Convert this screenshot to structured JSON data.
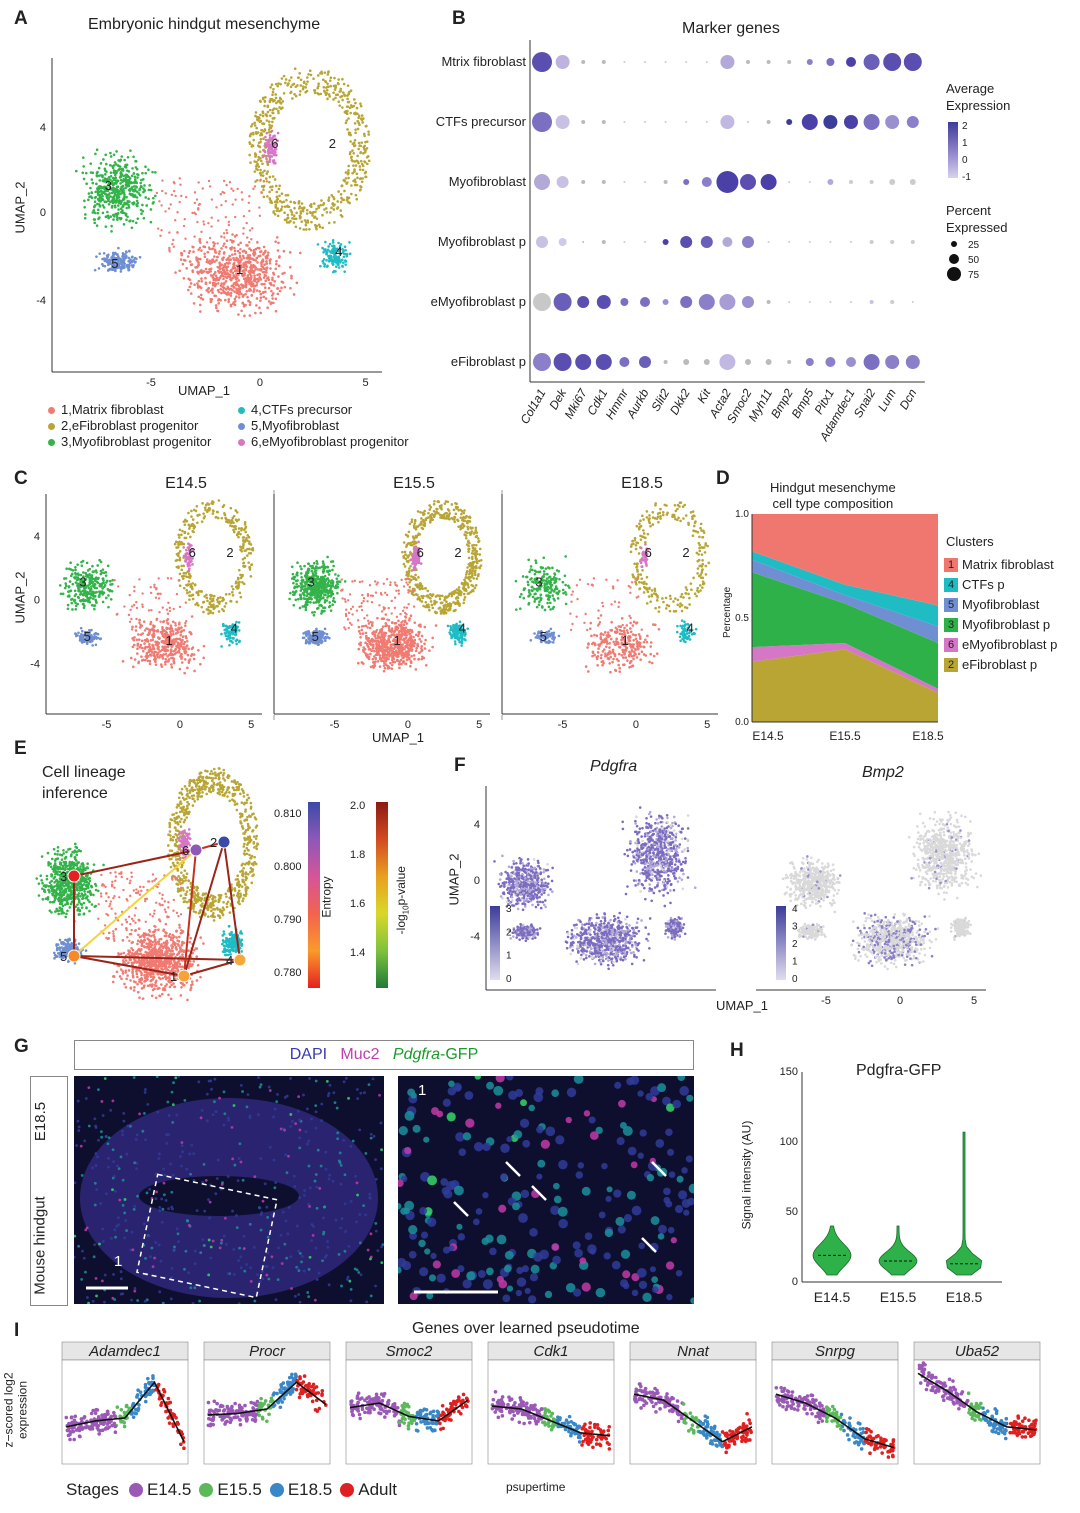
{
  "panelA": {
    "letter": "A",
    "title": "Embryonic hindgut mesenchyme",
    "xlabel": "UMAP_1",
    "ylabel": "UMAP_2",
    "xticks": [
      "-5",
      "0",
      "5"
    ],
    "yticks": [
      "4",
      "0",
      "-4"
    ],
    "cluster_numbers": [
      "1",
      "2",
      "3",
      "4",
      "5",
      "6"
    ],
    "legend": [
      {
        "label": "1,Matrix fibroblast",
        "color": "#ef7b72"
      },
      {
        "label": "2,eFibroblast progenitor",
        "color": "#b8a533"
      },
      {
        "label": "3,Myofibroblast progenitor",
        "color": "#33b34a"
      },
      {
        "label": "4,CTFs precursor",
        "color": "#1fbcc4"
      },
      {
        "label": "5,Myofibroblast",
        "color": "#6f8fd2"
      },
      {
        "label": "6,eMyofibroblast progenitor",
        "color": "#d676c6"
      }
    ]
  },
  "panelB": {
    "letter": "B",
    "title": "Marker genes",
    "rows": [
      "Mtrix fibroblast",
      "CTFs precursor",
      "Myofibroblast",
      "Myofibroblast p",
      "eMyofibroblast p",
      "eFibroblast p"
    ],
    "genes": [
      "Col1a1",
      "Dek",
      "Mki67",
      "Cdk1",
      "Hmmr",
      "Aurkb",
      "Slit2",
      "Dkk2",
      "Kit",
      "Acta2",
      "Smoc2",
      "Myh11",
      "Bmp2",
      "Bmp5",
      "Pitx1",
      "Adamdec1",
      "Snai2",
      "Lum",
      "Dcn"
    ],
    "avg_title_1": "Average",
    "avg_title_2": "Expression",
    "avg_ticks": [
      "2",
      "1",
      "0",
      "-1"
    ],
    "pct_title_1": "Percent",
    "pct_title_2": "Expressed",
    "pct_ticks": [
      "25",
      "50",
      "75"
    ]
  },
  "panelC": {
    "letter": "C",
    "stages": [
      "E14.5",
      "E15.5",
      "E18.5"
    ],
    "xlabel": "UMAP_1",
    "ylabel": "UMAP_2",
    "xticks": [
      "-5",
      "0",
      "5"
    ],
    "yticks": [
      "4",
      "0",
      "-4"
    ]
  },
  "panelD": {
    "letter": "D",
    "title_1": "Hindgut mesenchyme",
    "title_2": "cell type composition",
    "ylabel": "Percentage",
    "yticks": [
      "1.0",
      "0.5",
      "0.0"
    ],
    "legend_title": "Clusters",
    "legend": [
      {
        "num": "1",
        "label": "Matrix fibroblast",
        "color": "#f0776f"
      },
      {
        "num": "4",
        "label": "CTFs p",
        "color": "#1fbcc4"
      },
      {
        "num": "5",
        "label": "Myofibroblast",
        "color": "#6f8fd2"
      },
      {
        "num": "3",
        "label": "Myofibroblast p",
        "color": "#2fb14a"
      },
      {
        "num": "6",
        "label": "eMyofibroblast p",
        "color": "#d676c6"
      },
      {
        "num": "2",
        "label": "eFibroblast p",
        "color": "#b8a533"
      }
    ]
  },
  "chart_data": [
    {
      "type": "area",
      "title": "Hindgut mesenchyme cell type composition",
      "xlabel": "",
      "ylabel": "Percentage",
      "ylim": [
        0,
        1
      ],
      "x": [
        "E14.5",
        "E15.5",
        "E18.5"
      ],
      "stacking": "cumulative upper bounds",
      "series": [
        {
          "name": "2 eFibroblast p",
          "upper": [
            0.29,
            0.35,
            0.14
          ]
        },
        {
          "name": "6 eMyofibroblast p",
          "upper": [
            0.36,
            0.38,
            0.16
          ]
        },
        {
          "name": "3 Myofibroblast p",
          "upper": [
            0.72,
            0.57,
            0.38
          ]
        },
        {
          "name": "5 Myofibroblast",
          "upper": [
            0.78,
            0.61,
            0.46
          ]
        },
        {
          "name": "4 CTFs p",
          "upper": [
            0.82,
            0.66,
            0.56
          ]
        },
        {
          "name": "1 Matrix fibroblast",
          "upper": [
            1.0,
            1.0,
            1.0
          ]
        }
      ]
    },
    {
      "type": "violin",
      "title": "Pdgfra-GFP",
      "ylabel": "Signal intensity (AU)",
      "ylim": [
        0,
        150
      ],
      "categories": [
        "E14.5",
        "E15.5",
        "E18.5"
      ],
      "medians": [
        19,
        15,
        13
      ],
      "maxima": [
        40,
        40,
        107
      ]
    }
  ],
  "panelE": {
    "letter": "E",
    "title_1": "Cell lineage",
    "title_2": "inference",
    "nodes": [
      "1",
      "2",
      "3",
      "4",
      "5",
      "6"
    ],
    "entropy_label": "Entropy",
    "entropy_ticks": [
      "0.810",
      "0.800",
      "0.790",
      "0.780"
    ],
    "pval_label": "-log",
    "pval_sub": "10",
    "pval_tail": "p-value",
    "pval_ticks": [
      "2.0",
      "1.8",
      "1.6",
      "1.4"
    ]
  },
  "panelF": {
    "letter": "F",
    "gene1": "Pdgfra",
    "gene2": "Bmp2",
    "xlabel": "UMAP_1",
    "ylabel": "UMAP_2",
    "yticks": [
      "4",
      "0",
      "-4"
    ],
    "xticks": [
      "-5",
      "0",
      "5"
    ],
    "scale1": [
      "3",
      "2",
      "1",
      "0"
    ],
    "scale2": [
      "4",
      "3",
      "2",
      "1",
      "0"
    ]
  },
  "panelG": {
    "letter": "G",
    "dapi": "DAPI",
    "muc2": "Muc2",
    "gfp": "Pdgfra",
    "gfp_suffix": "-GFP",
    "side_top": "E18.5",
    "side_bottom": "Mouse hindgut",
    "inset_num": "1"
  },
  "panelH": {
    "letter": "H",
    "title": "Pdgfra-GFP",
    "ylabel": "Signal intensity (AU)",
    "yticks": [
      "150",
      "100",
      "50",
      "0"
    ],
    "categories": [
      "E14.5",
      "E15.5",
      "E18.5"
    ]
  },
  "panelI": {
    "letter": "I",
    "title": "Genes over learned pseudotime",
    "ylabel_1": "z−scored log2",
    "ylabel_2": "expression",
    "xlabel": "psupertime",
    "genes": [
      "Adamdec1",
      "Procr",
      "Smoc2",
      "Cdk1",
      "Nnat",
      "Snrpg",
      "Uba52"
    ],
    "stages_label": "Stages",
    "stages": [
      {
        "label": "E14.5",
        "color": "#9b59b6"
      },
      {
        "label": "E15.5",
        "color": "#5cb85c"
      },
      {
        "label": "E18.5",
        "color": "#3a87c8"
      },
      {
        "label": "Adult",
        "color": "#e02020"
      }
    ]
  }
}
